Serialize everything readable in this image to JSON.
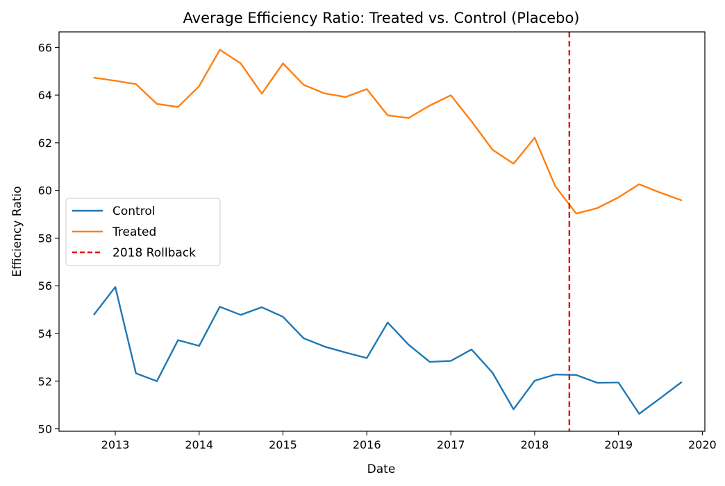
{
  "chart_data": {
    "type": "line",
    "title": "Average Efficiency Ratio: Treated vs. Control (Placebo)",
    "xlabel": "Date",
    "ylabel": "Efficiency Ratio",
    "xlim": [
      "2012-05-01",
      "2020-01-12"
    ],
    "ylim": [
      49.9,
      66.65
    ],
    "x_ticks": [
      {
        "label": "2013",
        "date": "2013-01-01"
      },
      {
        "label": "2014",
        "date": "2014-01-01"
      },
      {
        "label": "2015",
        "date": "2015-01-01"
      },
      {
        "label": "2016",
        "date": "2016-01-01"
      },
      {
        "label": "2017",
        "date": "2017-01-01"
      },
      {
        "label": "2018",
        "date": "2018-01-01"
      },
      {
        "label": "2019",
        "date": "2019-01-01"
      },
      {
        "label": "2020",
        "date": "2020-01-01"
      }
    ],
    "y_ticks": [
      50,
      52,
      54,
      56,
      58,
      60,
      62,
      64,
      66
    ],
    "grid": false,
    "legend": {
      "position": "center-left"
    },
    "x": [
      "2012-10-01",
      "2013-01-01",
      "2013-04-01",
      "2013-07-01",
      "2013-10-01",
      "2014-01-01",
      "2014-04-01",
      "2014-07-01",
      "2014-10-01",
      "2015-01-01",
      "2015-04-01",
      "2015-07-01",
      "2015-10-01",
      "2016-01-01",
      "2016-04-01",
      "2016-07-01",
      "2016-10-01",
      "2017-01-01",
      "2017-04-01",
      "2017-07-01",
      "2017-10-01",
      "2018-01-01",
      "2018-04-01",
      "2018-07-01",
      "2018-10-01",
      "2019-01-01",
      "2019-04-01",
      "2019-07-01",
      "2019-10-01"
    ],
    "series": [
      {
        "name": "Control",
        "color": "#1f77b4",
        "values": [
          54.8,
          55.95,
          52.33,
          52.0,
          53.72,
          53.48,
          55.12,
          54.78,
          55.1,
          54.7,
          53.8,
          53.45,
          53.2,
          52.97,
          54.46,
          53.53,
          52.81,
          52.85,
          53.33,
          52.36,
          50.82,
          52.02,
          52.28,
          52.26,
          51.93,
          51.94,
          50.63,
          51.28,
          51.95
        ]
      },
      {
        "name": "Treated",
        "color": "#ff7f0e",
        "values": [
          64.73,
          64.6,
          64.46,
          63.63,
          63.5,
          64.37,
          65.9,
          65.33,
          64.06,
          65.33,
          64.43,
          64.07,
          63.92,
          64.25,
          63.15,
          63.04,
          63.56,
          63.99,
          62.9,
          61.71,
          61.12,
          62.21,
          60.17,
          59.03,
          59.26,
          59.71,
          60.26,
          59.91,
          59.59
        ]
      }
    ],
    "annotations": [
      {
        "type": "vline",
        "name": "2018 Rollback",
        "x": "2018-06-01",
        "color": "#e60000",
        "style": "dashed"
      }
    ]
  }
}
